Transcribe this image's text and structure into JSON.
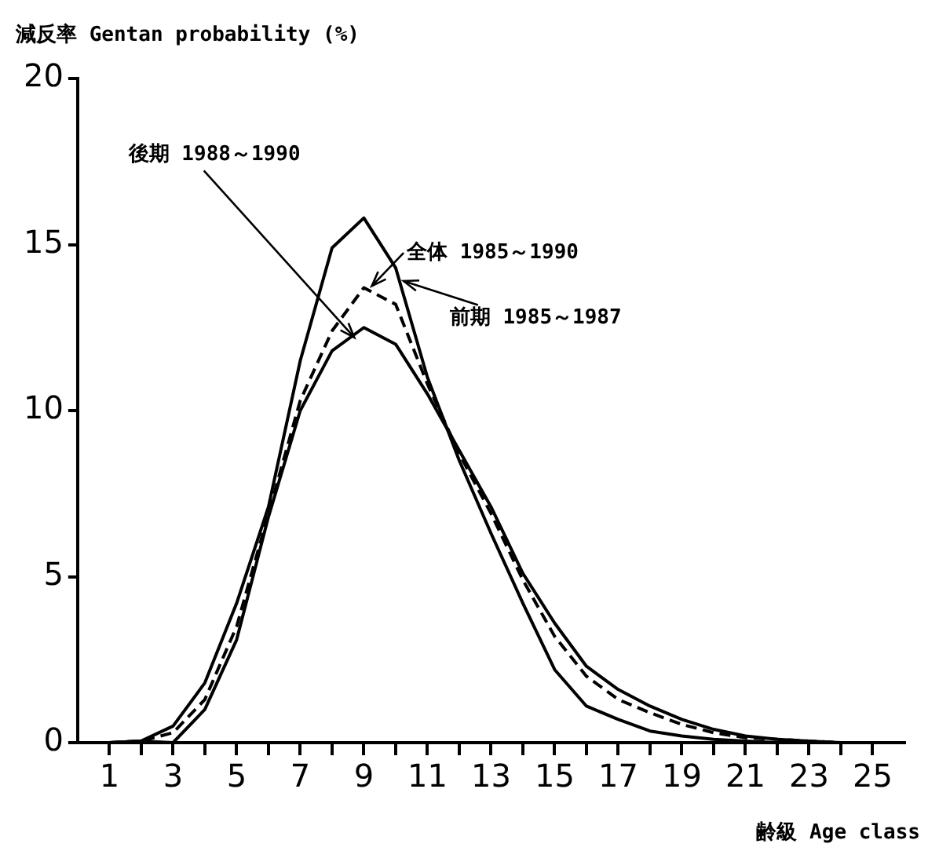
{
  "chart_data": {
    "type": "line",
    "ylabel": "減反率 Gentan probability (%)",
    "xlabel": "齢級 Age class",
    "x": [
      1,
      2,
      3,
      4,
      5,
      6,
      7,
      8,
      9,
      10,
      11,
      12,
      13,
      14,
      15,
      16,
      17,
      18,
      19,
      20,
      21,
      22,
      23,
      24
    ],
    "series": [
      {
        "name": "後期 1988～1990",
        "color": "#000000",
        "line_style": "solid",
        "values": [
          0,
          0.05,
          0,
          1.0,
          3.1,
          6.8,
          10.0,
          11.8,
          12.5,
          12.0,
          10.5,
          8.8,
          7.1,
          5.1,
          3.6,
          2.3,
          1.6,
          1.1,
          0.7,
          0.4,
          0.2,
          0.1,
          0.05,
          0
        ]
      },
      {
        "name": "全体 1985～1990",
        "color": "#000000",
        "line_style": "dashed",
        "values": [
          0,
          0.05,
          0.3,
          1.3,
          3.5,
          6.9,
          10.3,
          12.4,
          13.7,
          13.2,
          10.8,
          8.7,
          6.9,
          4.9,
          3.2,
          2.0,
          1.3,
          0.9,
          0.55,
          0.3,
          0.15,
          0.1,
          0.05,
          0
        ]
      },
      {
        "name": "前期 1985～1987",
        "color": "#000000",
        "line_style": "solid",
        "values": [
          0,
          0.05,
          0.5,
          1.8,
          4.2,
          7.1,
          11.5,
          14.9,
          15.8,
          14.3,
          11.0,
          8.5,
          6.3,
          4.2,
          2.2,
          1.1,
          0.7,
          0.35,
          0.2,
          0.1,
          0.05,
          0,
          0,
          0
        ]
      }
    ],
    "xlim": [
      0,
      26
    ],
    "ylim": [
      0,
      20
    ],
    "xticks": [
      1,
      {
        "value": 2,
        "label": null
      },
      3,
      {
        "value": 4,
        "label": null
      },
      5,
      {
        "value": 6,
        "label": null
      },
      7,
      {
        "value": 8,
        "label": null
      },
      9,
      {
        "value": 10,
        "label": null
      },
      11,
      {
        "value": 12,
        "label": null
      },
      13,
      {
        "value": 14,
        "label": null
      },
      15,
      {
        "value": 16,
        "label": null
      },
      17,
      {
        "value": 18,
        "label": null
      },
      19,
      {
        "value": 20,
        "label": null
      },
      21,
      {
        "value": 22,
        "label": null
      },
      23,
      {
        "value": 24,
        "label": null
      },
      25
    ],
    "yticks": [
      0,
      5,
      10,
      15,
      20
    ],
    "grid": false,
    "marker": "none"
  }
}
